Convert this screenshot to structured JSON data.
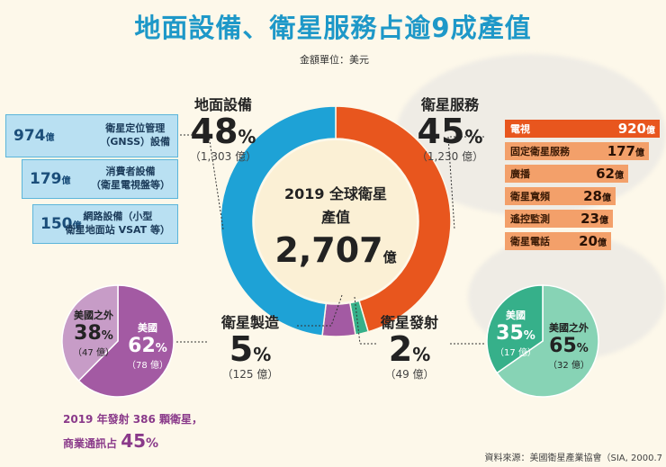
{
  "header": {
    "title": "地面設備、衛星服務占逾9成產值",
    "unit": "金額單位：美元"
  },
  "center": {
    "line1": "2019 全球衛星",
    "line2": "產值",
    "total": "2,707",
    "total_unit": "億"
  },
  "segments": {
    "ground": {
      "label": "地面設備",
      "pct": "48",
      "amount": "（1,303 億）"
    },
    "services": {
      "label": "衛星服務",
      "pct": "45",
      "amount": "（1,230 億）"
    },
    "manufacturing": {
      "label": "衛星製造",
      "pct": "5",
      "amount": "（125 億）"
    },
    "launch": {
      "label": "衛星發射",
      "pct": "2",
      "amount": "（49 億）"
    },
    "pct_sign": "%"
  },
  "ground_breakdown": [
    {
      "amount": "974",
      "unit": "億",
      "label_line1": "衛星定位管理",
      "label_line2": "（GNSS）設備"
    },
    {
      "amount": "179",
      "unit": "億",
      "label_line1": "消費者設備",
      "label_line2": "（衛星電視盤等）"
    },
    {
      "amount": "150",
      "unit": "億",
      "label_line1": "網路設備（小型",
      "label_line2": "衛星地面站 VSAT 等）"
    }
  ],
  "services_breakdown": [
    {
      "label": "電視",
      "amount": "920",
      "unit": "億"
    },
    {
      "label": "固定衛星服務",
      "amount": "177",
      "unit": "億"
    },
    {
      "label": "廣播",
      "amount": "62",
      "unit": "億"
    },
    {
      "label": "衛星寬頻",
      "amount": "28",
      "unit": "億"
    },
    {
      "label": "遙控監測",
      "amount": "23",
      "unit": "億"
    },
    {
      "label": "衛星電話",
      "amount": "20",
      "unit": "億"
    }
  ],
  "manufacturing_split": {
    "a": {
      "label": "美國之外",
      "pct": "38",
      "amount": "（47 億）"
    },
    "b": {
      "label": "美國",
      "pct": "62",
      "amount": "（78 億）"
    }
  },
  "launch_split": {
    "a": {
      "label": "美國",
      "pct": "35",
      "amount": "（17 億）"
    },
    "b": {
      "label": "美國之外",
      "pct": "65",
      "amount": "（32 億）"
    }
  },
  "launch_note": {
    "line1": "2019 年發射 386 顆衛星，",
    "line2": "商業通訊占",
    "pct": "45",
    "pct_sign": "%"
  },
  "source": "資料來源：美國衛星產業協會（SIA, 2000.7",
  "colors": {
    "ground": "#1ea2d6",
    "services": "#e8561e",
    "manufacturing": "#a35aa3",
    "launch": "#36b08a",
    "manu_other": "#c79cc7",
    "launch_other": "#87d3b5",
    "services_top": "#e8561e",
    "services_rest": "#f3a06a"
  },
  "chart_data": [
    {
      "type": "pie",
      "title": "2019 全球衛星產值 2,707 億",
      "categories": [
        "地面設備",
        "衛星服務",
        "衛星製造",
        "衛星發射"
      ],
      "values": [
        1303,
        1230,
        125,
        49
      ],
      "percents": [
        48,
        45,
        5,
        2
      ]
    },
    {
      "type": "bar",
      "categories": [
        "衛星定位管理（GNSS）設備",
        "消費者設備（衛星電視盤等）",
        "網路設備（小型衛星地面站 VSAT 等）"
      ],
      "values": [
        974,
        179,
        150
      ]
    },
    {
      "type": "bar",
      "categories": [
        "電視",
        "固定衛星服務",
        "廣播",
        "衛星寬頻",
        "遙控監測",
        "衛星電話"
      ],
      "values": [
        920,
        177,
        62,
        28,
        23,
        20
      ]
    },
    {
      "type": "pie",
      "categories": [
        "美國之外",
        "美國"
      ],
      "values": [
        47,
        78
      ],
      "percents": [
        38,
        62
      ]
    },
    {
      "type": "pie",
      "categories": [
        "美國",
        "美國之外"
      ],
      "values": [
        17,
        32
      ],
      "percents": [
        35,
        65
      ]
    }
  ]
}
